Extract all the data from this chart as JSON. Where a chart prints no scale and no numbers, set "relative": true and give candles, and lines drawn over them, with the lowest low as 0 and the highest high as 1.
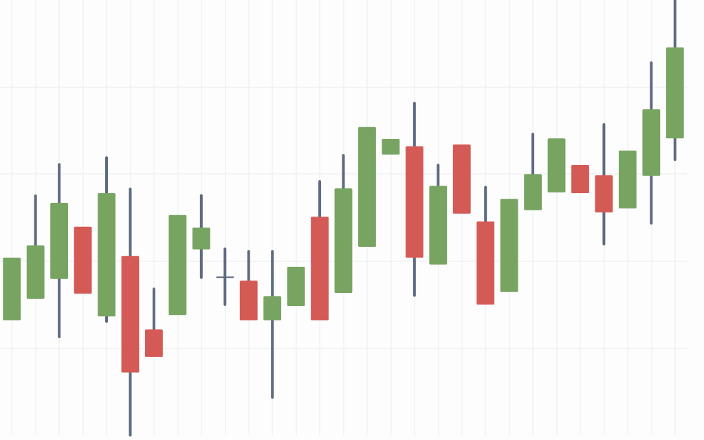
{
  "chart_data": {
    "type": "candlestick",
    "relative": true,
    "grid": true,
    "color": "#5e6a7f",
    "categories": [
      null,
      null,
      null,
      null,
      null,
      null,
      null,
      null,
      null,
      null,
      null,
      null,
      null,
      null,
      null,
      null,
      null,
      null,
      null,
      null,
      null,
      null,
      null,
      null,
      null,
      null,
      null,
      null,
      null
    ],
    "ohlc": [
      [
        0.264,
        0.408,
        0.264,
        0.408
      ],
      [
        0.313,
        0.55,
        0.313,
        0.436
      ],
      [
        0.359,
        0.622,
        0.226,
        0.534
      ],
      [
        0.479,
        0.479,
        0.325,
        0.325
      ],
      [
        0.273,
        0.638,
        0.261,
        0.556
      ],
      [
        0.412,
        0.566,
        0,
        0.144
      ],
      [
        0.243,
        0.336,
        0.18,
        0.18
      ],
      [
        0.276,
        0.506,
        0.276,
        0.506
      ],
      [
        0.427,
        0.551,
        0.362,
        0.477
      ],
      [
        0.363,
        0.428,
        0.3,
        0.363
      ],
      [
        0.355,
        0.422,
        0.264,
        0.264
      ],
      [
        0.264,
        0.422,
        0.087,
        0.319
      ],
      [
        0.297,
        0.387,
        0.297,
        0.387
      ],
      [
        0.502,
        0.583,
        0.264,
        0.264
      ],
      [
        0.327,
        0.643,
        0.327,
        0.567
      ],
      [
        0.433,
        0.708,
        0.433,
        0.708
      ],
      [
        0.645,
        0.681,
        0.645,
        0.681
      ],
      [
        0.664,
        0.763,
        0.321,
        0.408
      ],
      [
        0.392,
        0.621,
        0.392,
        0.573
      ],
      [
        0.668,
        0.668,
        0.509,
        0.509
      ],
      [
        0.491,
        0.57,
        0.3,
        0.3
      ],
      [
        0.329,
        0.543,
        0.329,
        0.543
      ],
      [
        0.517,
        0.692,
        0.517,
        0.6
      ],
      [
        0.558,
        0.682,
        0.558,
        0.682
      ],
      [
        0.621,
        0.621,
        0.556,
        0.556
      ],
      [
        0.597,
        0.714,
        0.439,
        0.512
      ],
      [
        0.521,
        0.654,
        0.521,
        0.654
      ],
      [
        0.596,
        0.856,
        0.487,
        0.749
      ],
      [
        0.682,
        1,
        0.633,
        0.891
      ]
    ],
    "colors": [
      "#78a462",
      "#78a462",
      "#78a462",
      "#d45a55",
      "#78a462",
      "#d45a55",
      "#d45a55",
      "#78a462",
      "#78a462",
      "#5e6a7f",
      "#d45a55",
      "#78a462",
      "#78a462",
      "#d45a55",
      "#78a462",
      "#78a462",
      "#78a462",
      "#d45a55",
      "#78a462",
      "#d45a55",
      "#d45a55",
      "#78a462",
      "#78a462",
      "#78a462",
      "#d45a55",
      "#d45a55",
      "#78a462",
      "#78a462",
      "#78a462"
    ]
  }
}
